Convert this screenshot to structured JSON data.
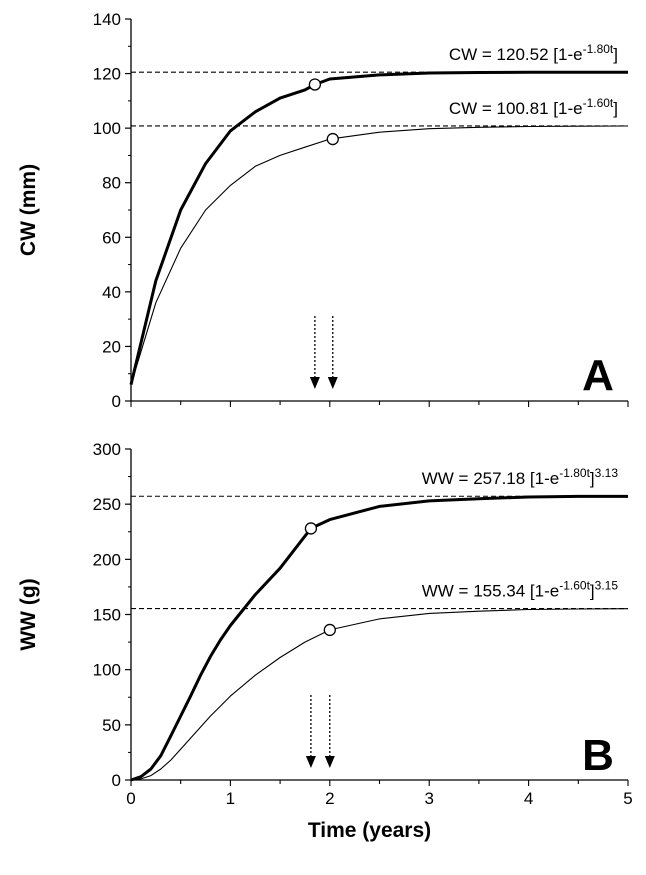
{
  "chart_data": [
    {
      "type": "line",
      "panel_label": "A",
      "ylabel": "CW (mm)",
      "xlim": [
        0,
        5
      ],
      "ylim": [
        0,
        140
      ],
      "yticks": [
        0,
        20,
        40,
        60,
        80,
        100,
        120,
        140
      ],
      "xticks": [],
      "grid": false,
      "series": [
        {
          "style": "thick",
          "asymptote": 120.52,
          "equation": {
            "main": "CW = 120.52 [1-e",
            "exp": "-1.80t",
            "close": "]"
          },
          "x": [
            0.0,
            0.25,
            0.5,
            0.75,
            1.0,
            1.25,
            1.5,
            1.75,
            1.85,
            2.0,
            2.5,
            3.0,
            3.5,
            4.0,
            4.5,
            5.0
          ],
          "y": [
            6,
            44,
            70,
            87,
            99,
            106,
            111,
            114,
            116,
            118,
            119.5,
            120.2,
            120.4,
            120.5,
            120.5,
            120.5
          ],
          "marker": {
            "x": 1.85,
            "y": 116
          }
        },
        {
          "style": "thin",
          "asymptote": 100.81,
          "equation": {
            "main": "CW = 100.81 [1-e",
            "exp": "-1.60t",
            "close": "]"
          },
          "x": [
            0.0,
            0.25,
            0.5,
            0.75,
            1.0,
            1.25,
            1.5,
            1.75,
            2.0,
            2.5,
            3.0,
            3.5,
            4.0,
            4.5,
            5.0
          ],
          "y": [
            6,
            36,
            56,
            70,
            79,
            86,
            90,
            93,
            96,
            98.5,
            99.8,
            100.3,
            100.6,
            100.7,
            100.8
          ],
          "marker": {
            "x": 2.03,
            "y": 96
          }
        }
      ],
      "arrows": [
        1.85,
        2.03
      ]
    },
    {
      "type": "line",
      "panel_label": "B",
      "xlabel": "Time (years)",
      "ylabel": "WW (g)",
      "xlim": [
        0,
        5
      ],
      "ylim": [
        0,
        300
      ],
      "yticks": [
        0,
        50,
        100,
        150,
        200,
        250,
        300
      ],
      "xticks": [
        0,
        1,
        2,
        3,
        4,
        5
      ],
      "grid": false,
      "series": [
        {
          "style": "thick",
          "asymptote": 257.18,
          "equation": {
            "main": "WW = 257.18 [1-e",
            "exp": "-1.80t",
            "close": "]",
            "power": "3.13"
          },
          "x": [
            0.0,
            0.1,
            0.2,
            0.3,
            0.4,
            0.5,
            0.6,
            0.7,
            0.8,
            0.9,
            1.0,
            1.25,
            1.5,
            1.81,
            2.0,
            2.5,
            3.0,
            3.5,
            4.0,
            4.5,
            5.0
          ],
          "y": [
            0,
            3,
            10,
            22,
            40,
            58,
            76,
            95,
            112,
            127,
            140,
            168,
            192,
            228,
            236,
            248,
            253,
            255,
            256.5,
            257,
            257
          ],
          "marker": {
            "x": 1.81,
            "y": 228
          }
        },
        {
          "style": "thin",
          "asymptote": 155.34,
          "equation": {
            "main": "WW = 155.34 [1-e",
            "exp": "-1.60t",
            "close": "]",
            "power": "3.15"
          },
          "x": [
            0.0,
            0.1,
            0.2,
            0.3,
            0.4,
            0.5,
            0.6,
            0.7,
            0.8,
            0.9,
            1.0,
            1.25,
            1.5,
            1.75,
            2.0,
            2.5,
            3.0,
            3.5,
            4.0,
            4.5,
            5.0
          ],
          "y": [
            0,
            1,
            4,
            10,
            18,
            28,
            38,
            48,
            58,
            67,
            76,
            95,
            111,
            125,
            136,
            146,
            151,
            153,
            154.5,
            155,
            155.3
          ],
          "marker": {
            "x": 2.0,
            "y": 136
          }
        }
      ],
      "arrows": [
        1.81,
        2.0
      ]
    }
  ]
}
